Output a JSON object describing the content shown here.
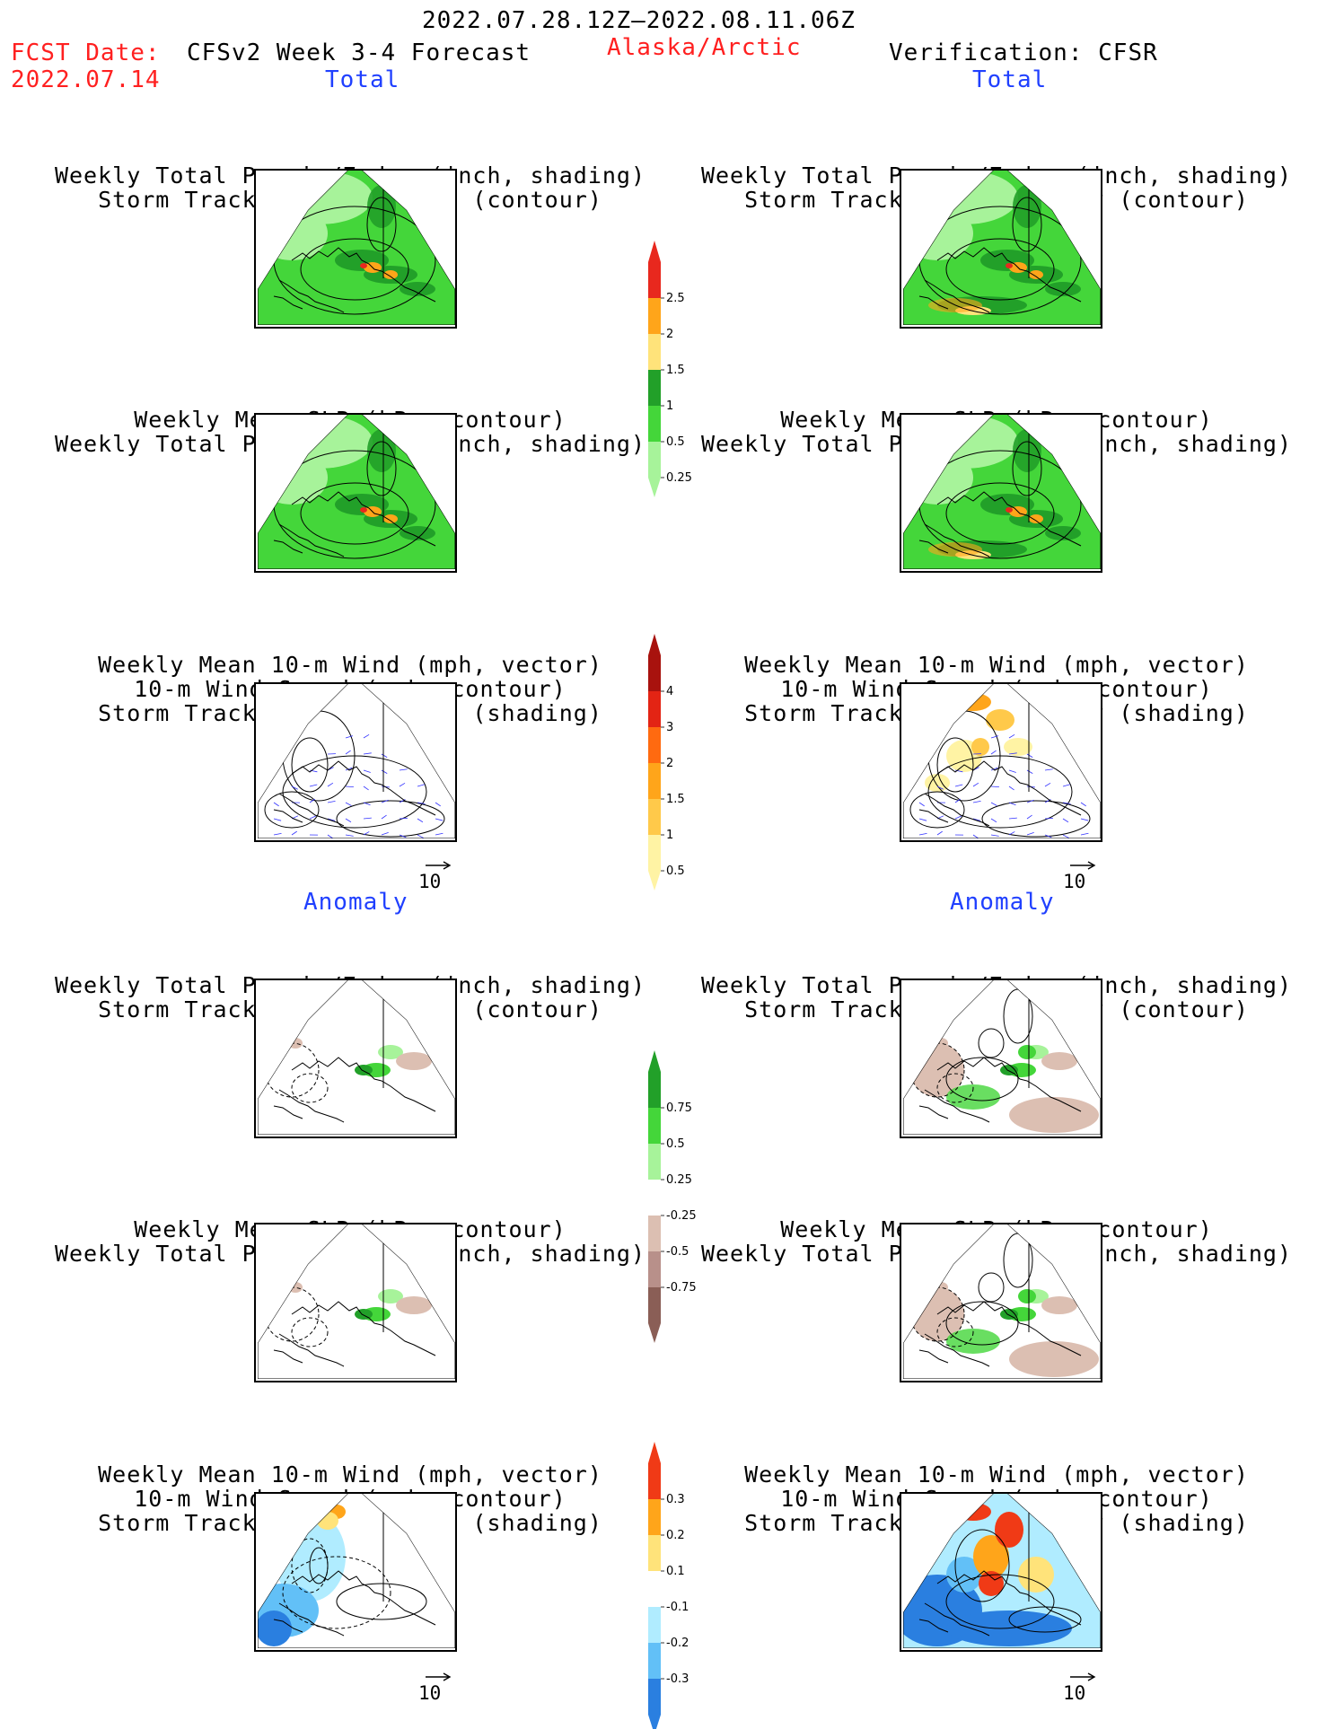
{
  "header": {
    "date_range": "2022.07.28.12Z–2022.08.11.06Z",
    "fcst_label": "FCST Date:",
    "fcst_date": "2022.07.14",
    "forecast_title": "CFSv2 Week 3-4 Forecast",
    "region": "Alaska/Arctic",
    "verification": "Verification: CFSR"
  },
  "sections": {
    "total": "Total",
    "anomaly": "Anomaly"
  },
  "titles": {
    "precip_storm": [
      "Weekly Total Precip/7-day (inch, shading)",
      "Storm Track Density/7-day (contour)"
    ],
    "slp_precip": [
      "Weekly Mean SLP (hPa, contour)",
      "Weekly Total Precip/7-day (inch, shading)"
    ],
    "wind_storm": [
      "Weekly Mean 10-m Wind (mph, vector)",
      "10-m Wind Speed (mph, contour)",
      "Storm Track Density/7-day (shading)"
    ]
  },
  "vector_ref": "10",
  "colorbars": {
    "precip_total": {
      "labels": [
        "2.5",
        "2",
        "1.5",
        "1",
        "0.5",
        "0.25"
      ],
      "colors": [
        "#e8281e",
        "#ffa51a",
        "#ffe37a",
        "#22a029",
        "#44d63a",
        "#a7f39a"
      ]
    },
    "storm_total": {
      "labels": [
        "4",
        "3",
        "2",
        "1.5",
        "1",
        "0.5"
      ],
      "colors": [
        "#a8120e",
        "#e32414",
        "#ff6a10",
        "#ffa51a",
        "#ffc94a",
        "#fff3a4"
      ]
    },
    "precip_anom": {
      "labels": [
        "0.75",
        "0.5",
        "0.25",
        "-0.25",
        "-0.5",
        "-0.75"
      ],
      "colors": [
        "#22a029",
        "#44d63a",
        "#a7f39a",
        "#ffffff",
        "#dcbfb2",
        "#b8908a",
        "#8a5e56"
      ]
    },
    "storm_anom": {
      "labels": [
        "0.3",
        "0.2",
        "0.1",
        "-0.1",
        "-0.2",
        "-0.3"
      ],
      "colors": [
        "#f03a16",
        "#ffa51a",
        "#ffe37a",
        "#ffffff",
        "#b0ecff",
        "#62c0f7",
        "#2a7fe0"
      ]
    }
  },
  "panels": [
    {
      "id": "fc-total-precip",
      "fill": "#44d63a",
      "hi": "#22a029",
      "hot": "#ffa51a",
      "light": "#a7f39a",
      "kind": "precip"
    },
    {
      "id": "ver-total-precip",
      "fill": "#44d63a",
      "hi": "#22a029",
      "hot": "#ffa51a",
      "light": "#a7f39a",
      "kind": "precip"
    },
    {
      "id": "fc-total-slp",
      "fill": "#44d63a",
      "hi": "#22a029",
      "hot": "#ffa51a",
      "light": "#a7f39a",
      "kind": "precip"
    },
    {
      "id": "ver-total-slp",
      "fill": "#44d63a",
      "hi": "#22a029",
      "hot": "#ffa51a",
      "light": "#a7f39a",
      "kind": "precip"
    },
    {
      "id": "fc-total-wind",
      "kind": "wind"
    },
    {
      "id": "ver-total-wind",
      "kind": "wind-warm"
    },
    {
      "id": "fc-anom-precip",
      "kind": "anom"
    },
    {
      "id": "ver-anom-precip",
      "kind": "anom-big"
    },
    {
      "id": "fc-anom-slp",
      "kind": "anom"
    },
    {
      "id": "ver-anom-slp",
      "kind": "anom-big"
    },
    {
      "id": "fc-anom-wind",
      "kind": "storm-cool"
    },
    {
      "id": "ver-anom-wind",
      "kind": "storm-mixed"
    }
  ]
}
